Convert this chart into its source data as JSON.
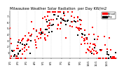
{
  "title": "Milwaukee Weather Solar Radiation  per Day KW/m2",
  "title_fontsize": 3.8,
  "background_color": "#ffffff",
  "ylim": [
    0,
    8
  ],
  "xlim": [
    1,
    53
  ],
  "ylabel_fontsize": 3.0,
  "xlabel_fontsize": 2.8,
  "ytick_labels": [
    "1",
    "2",
    "3",
    "4",
    "5",
    "6",
    "7"
  ],
  "ytick_values": [
    1,
    2,
    3,
    4,
    5,
    6,
    7
  ],
  "grid_color": "#cccccc",
  "dot_color_red": "#ff0000",
  "dot_color_black": "#000000",
  "legend_label_1": "Actual",
  "legend_label_2": "Avg",
  "dot_size_red": 1.5,
  "dot_size_black": 1.0,
  "num_weeks": 52,
  "xtick_positions": [
    1,
    5,
    9,
    13,
    17,
    21,
    26,
    30,
    35,
    39,
    43,
    48
  ],
  "xtick_labels": [
    "1/1",
    "2/1",
    "3/1",
    "4/1",
    "5/1",
    "6/1",
    "7/1",
    "8/1",
    "9/1",
    "10/1",
    "11/1",
    "12/1"
  ]
}
